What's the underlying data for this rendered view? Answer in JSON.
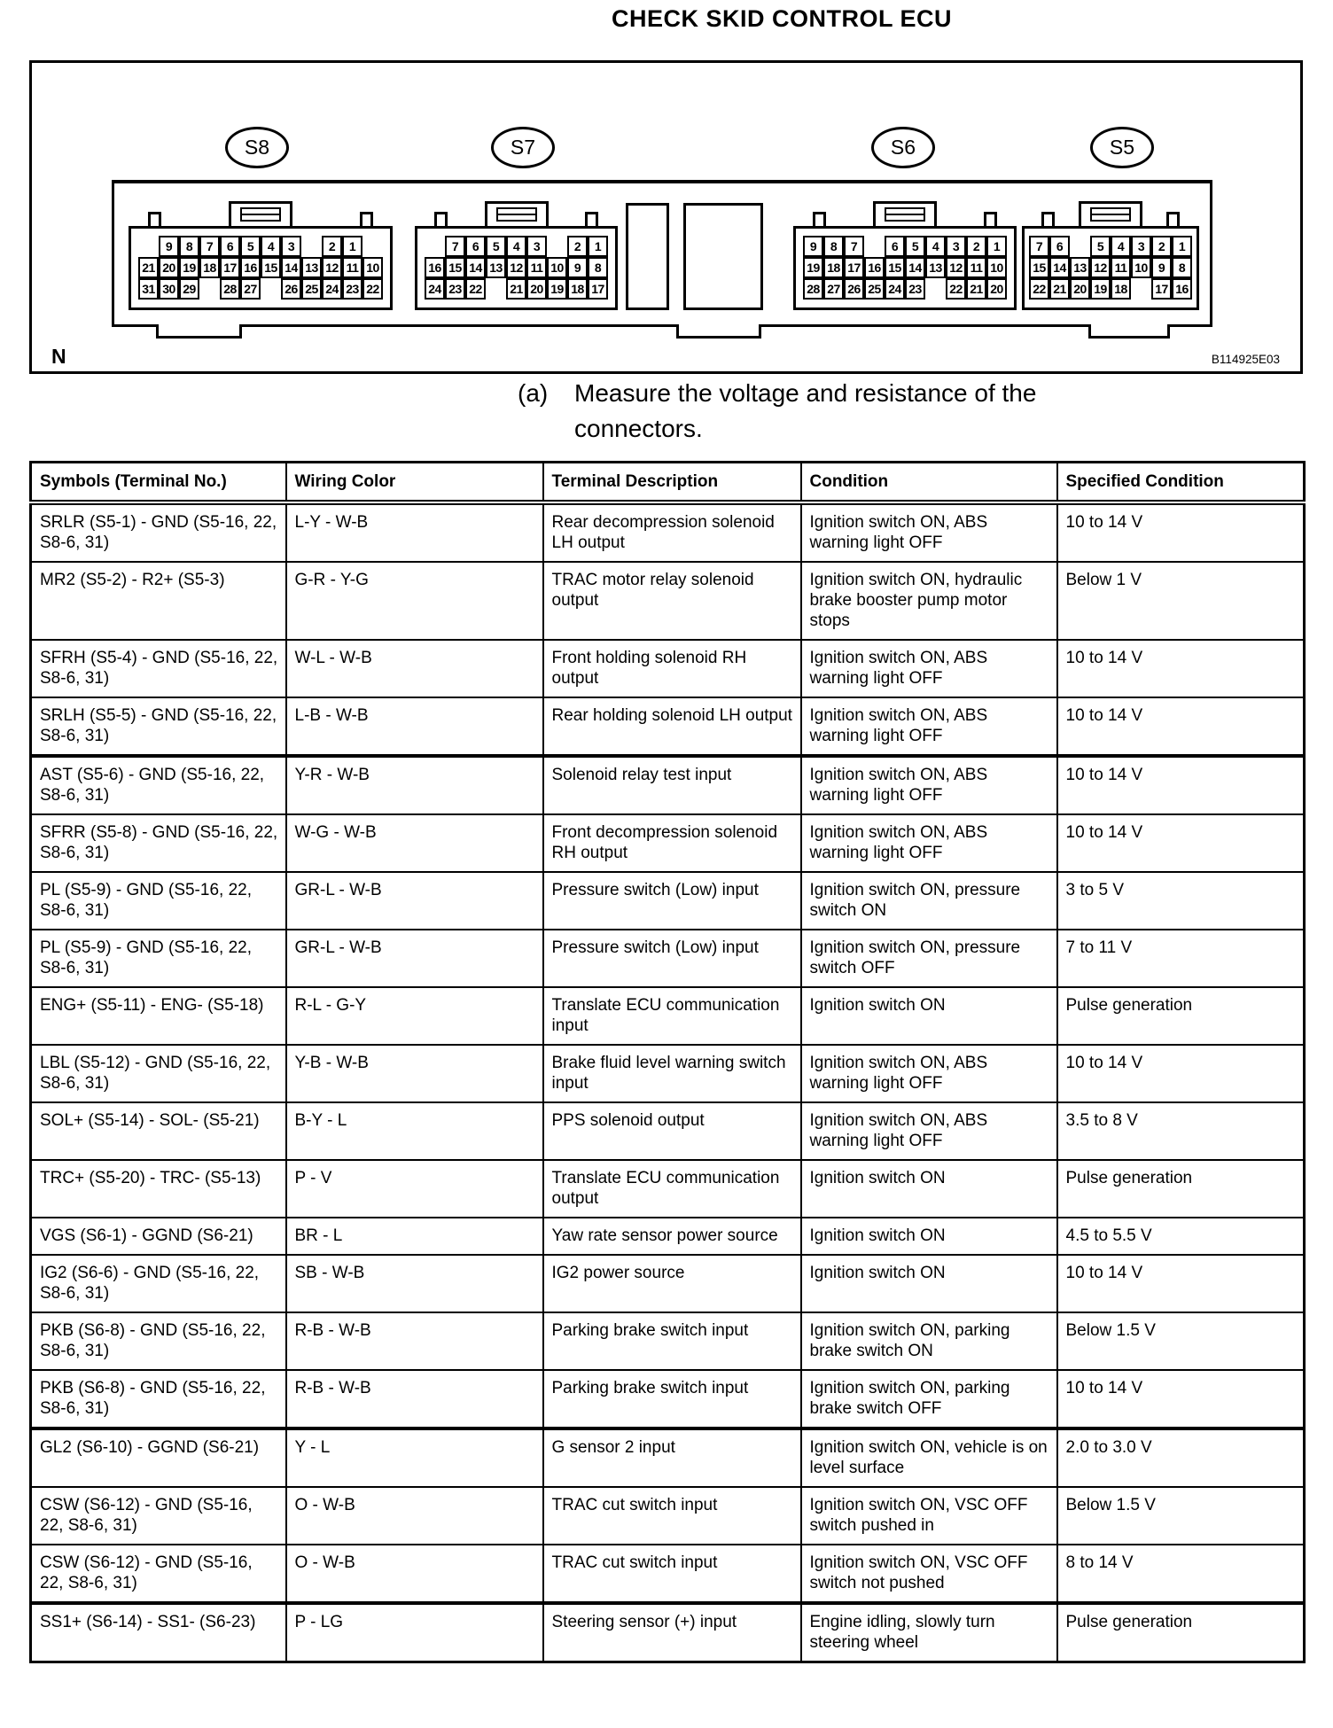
{
  "page": {
    "title": "CHECK SKID CONTROL ECU"
  },
  "diagram": {
    "note_label": "N",
    "figure_code": "B114925E03",
    "connectors": [
      {
        "id": "S8",
        "pins": [
          [
            null,
            9,
            8,
            7,
            6,
            5,
            4,
            3,
            null,
            2,
            1,
            null
          ],
          [
            21,
            20,
            19,
            18,
            17,
            16,
            15,
            14,
            13,
            12,
            11,
            10
          ],
          [
            31,
            30,
            29,
            null,
            28,
            27,
            null,
            26,
            25,
            24,
            23,
            22
          ]
        ]
      },
      {
        "id": "S7",
        "pins": [
          [
            null,
            7,
            6,
            5,
            4,
            3,
            null,
            2,
            1
          ],
          [
            16,
            15,
            14,
            13,
            12,
            11,
            10,
            9,
            8
          ],
          [
            24,
            23,
            22,
            null,
            21,
            20,
            19,
            18,
            17
          ]
        ]
      },
      {
        "id": "S6",
        "pins": [
          [
            9,
            8,
            7,
            null,
            6,
            5,
            4,
            3,
            2,
            1
          ],
          [
            19,
            18,
            17,
            16,
            15,
            14,
            13,
            12,
            11,
            10
          ],
          [
            28,
            27,
            26,
            25,
            24,
            23,
            null,
            22,
            21,
            20
          ]
        ]
      },
      {
        "id": "S5",
        "pins": [
          [
            7,
            6,
            null,
            5,
            4,
            3,
            2,
            1
          ],
          [
            15,
            14,
            13,
            12,
            11,
            10,
            9,
            8
          ],
          [
            22,
            21,
            20,
            19,
            18,
            null,
            17,
            16
          ]
        ]
      }
    ]
  },
  "instruction": {
    "label": "(a)",
    "lines": [
      "Measure the voltage and resistance of the",
      "connectors."
    ]
  },
  "table": {
    "headers": [
      "Symbols (Terminal No.)",
      "Wiring Color",
      "Terminal Description",
      "Condition",
      "Specified Condition"
    ],
    "rows": [
      {
        "symbol": "SRLR (S5-1) - GND (S5-16, 22, S8-6, 31)",
        "wiring": "L-Y - W-B",
        "description": "Rear decompression solenoid LH output",
        "condition": "Ignition switch ON, ABS warning light OFF",
        "specified": "10 to 14 V"
      },
      {
        "symbol": "MR2 (S5-2) - R2+ (S5-3)",
        "wiring": "G-R - Y-G",
        "description": "TRAC motor relay solenoid output",
        "condition": "Ignition switch ON, hydraulic brake booster pump motor stops",
        "specified": "Below 1 V"
      },
      {
        "symbol": "SFRH (S5-4) - GND (S5-16, 22, S8-6, 31)",
        "wiring": "W-L - W-B",
        "description": "Front holding solenoid RH output",
        "condition": "Ignition switch ON, ABS warning light OFF",
        "specified": "10 to 14 V"
      },
      {
        "symbol": "SRLH (S5-5) - GND (S5-16, 22, S8-6, 31)",
        "wiring": "L-B - W-B",
        "description": "Rear holding solenoid LH output",
        "condition": "Ignition switch ON, ABS warning light OFF",
        "specified": "10 to 14 V"
      },
      {
        "symbol": "AST (S5-6) - GND (S5-16, 22, S8-6, 31)",
        "wiring": "Y-R - W-B",
        "description": "Solenoid relay test input",
        "condition": "Ignition switch ON, ABS warning light OFF",
        "specified": "10 to 14 V",
        "thick_top": true
      },
      {
        "symbol": "SFRR (S5-8) - GND (S5-16, 22, S8-6, 31)",
        "wiring": "W-G - W-B",
        "description": "Front decompression solenoid RH output",
        "condition": "Ignition switch ON, ABS warning light OFF",
        "specified": "10 to 14 V"
      },
      {
        "symbol": "PL (S5-9) - GND (S5-16, 22, S8-6, 31)",
        "wiring": "GR-L - W-B",
        "description": "Pressure switch (Low) input",
        "condition": "Ignition switch ON, pressure switch ON",
        "specified": "3 to 5 V"
      },
      {
        "symbol": "PL (S5-9) - GND (S5-16, 22, S8-6, 31)",
        "wiring": "GR-L - W-B",
        "description": "Pressure switch (Low) input",
        "condition": "Ignition switch ON, pressure switch OFF",
        "specified": "7 to 11 V"
      },
      {
        "symbol": "ENG+ (S5-11) - ENG- (S5-18)",
        "wiring": "R-L - G-Y",
        "description": "Translate ECU communication input",
        "condition": "Ignition switch ON",
        "specified": "Pulse generation"
      },
      {
        "symbol": "LBL (S5-12) - GND (S5-16, 22, S8-6, 31)",
        "wiring": "Y-B - W-B",
        "description": "Brake fluid level warning switch input",
        "condition": "Ignition switch ON, ABS warning light OFF",
        "specified": "10 to 14 V"
      },
      {
        "symbol": "SOL+ (S5-14) - SOL- (S5-21)",
        "wiring": "B-Y - L",
        "description": "PPS solenoid output",
        "condition": "Ignition switch ON, ABS warning light OFF",
        "specified": "3.5 to 8 V"
      },
      {
        "symbol": "TRC+ (S5-20) - TRC- (S5-13)",
        "wiring": "P - V",
        "description": "Translate ECU communication output",
        "condition": "Ignition switch ON",
        "specified": "Pulse generation"
      },
      {
        "symbol": "VGS (S6-1) - GGND (S6-21)",
        "wiring": "BR - L",
        "description": "Yaw rate sensor power source",
        "condition": "Ignition switch ON",
        "specified": "4.5 to 5.5 V"
      },
      {
        "symbol": "IG2 (S6-6) - GND (S5-16, 22, S8-6, 31)",
        "wiring": "SB - W-B",
        "description": "IG2 power source",
        "condition": "Ignition switch ON",
        "specified": "10 to 14 V"
      },
      {
        "symbol": "PKB (S6-8) - GND (S5-16, 22, S8-6, 31)",
        "wiring": "R-B - W-B",
        "description": "Parking brake switch input",
        "condition": "Ignition switch ON, parking brake switch ON",
        "specified": "Below 1.5 V"
      },
      {
        "symbol": "PKB (S6-8) - GND (S5-16, 22, S8-6, 31)",
        "wiring": "R-B - W-B",
        "description": "Parking brake switch input",
        "condition": "Ignition switch ON, parking brake switch OFF",
        "specified": "10 to 14 V"
      },
      {
        "symbol": "GL2 (S6-10) - GGND (S6-21)",
        "wiring": "Y - L",
        "description": "G sensor 2 input",
        "condition": "Ignition switch ON, vehicle is on level surface",
        "specified": "2.0 to 3.0 V",
        "thick_top": true
      },
      {
        "symbol": "CSW (S6-12) - GND (S5-16, 22, S8-6, 31)",
        "wiring": "O - W-B",
        "description": "TRAC cut switch input",
        "condition": "Ignition switch ON, VSC OFF switch pushed in",
        "specified": "Below 1.5 V"
      },
      {
        "symbol": "CSW (S6-12) - GND (S5-16, 22, S8-6, 31)",
        "wiring": "O - W-B",
        "description": "TRAC cut switch input",
        "condition": "Ignition switch ON, VSC OFF switch not pushed",
        "specified": "8 to 14 V"
      },
      {
        "symbol": "SS1+ (S6-14) - SS1- (S6-23)",
        "wiring": "P - LG",
        "description": "Steering sensor (+) input",
        "condition": "Engine idling, slowly turn steering wheel",
        "specified": "Pulse generation",
        "thick_top": true
      }
    ]
  }
}
